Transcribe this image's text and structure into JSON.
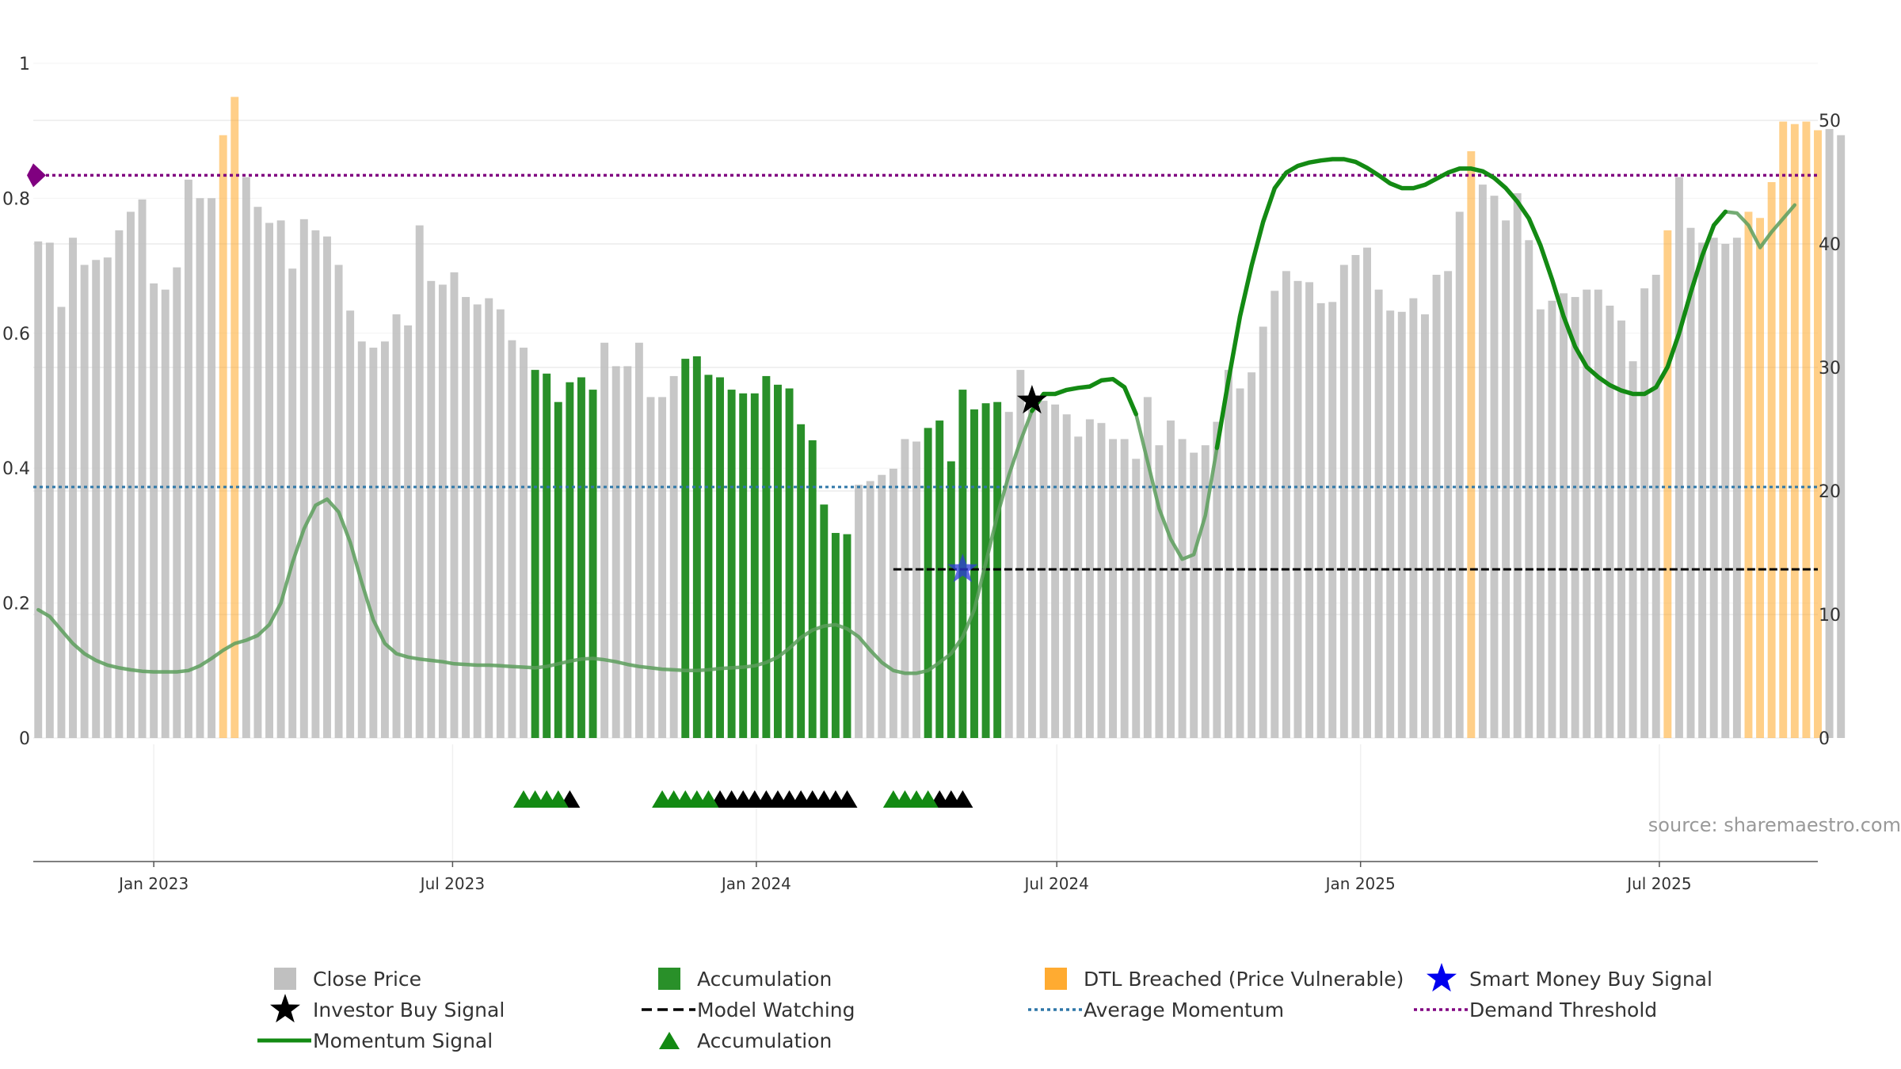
{
  "chart_data": {
    "type": "bar",
    "title": "",
    "source": "source: sharemaestro.com",
    "left_axis": {
      "ylim": [
        0,
        1
      ],
      "ticks": [
        "0",
        "0.2",
        "0.4",
        "0.6",
        "0.8",
        "1"
      ]
    },
    "right_axis": {
      "ylim": [
        0,
        50
      ],
      "ticks": [
        "0",
        "10",
        "20",
        "30",
        "40",
        "50"
      ]
    },
    "x_range": [
      "2022-10-20",
      "2025-10-05"
    ],
    "x_ticks": [
      {
        "date": "2023-01-01",
        "label": "Jan 2023"
      },
      {
        "date": "2023-07-01",
        "label": "Jul 2023"
      },
      {
        "date": "2024-01-01",
        "label": "Jan 2024"
      },
      {
        "date": "2024-07-01",
        "label": "Jul 2024"
      },
      {
        "date": "2025-01-01",
        "label": "Jan 2025"
      },
      {
        "date": "2025-07-01",
        "label": "Jul 2025"
      }
    ],
    "bar_start": "2022-10-23",
    "bar_interval_days": 7,
    "close_price": [
      40.2,
      40.1,
      34.9,
      40.5,
      38.3,
      38.7,
      38.9,
      41.1,
      42.6,
      43.6,
      36.8,
      36.3,
      38.1,
      45.2,
      43.7,
      43.7,
      48.8,
      51.9,
      45.4,
      43.0,
      41.7,
      41.9,
      38.0,
      42.0,
      41.1,
      40.6,
      38.3,
      34.6,
      32.1,
      31.6,
      32.1,
      34.3,
      33.4,
      41.5,
      37.0,
      36.7,
      37.7,
      35.7,
      35.1,
      35.6,
      34.7,
      32.2,
      31.6,
      29.8,
      29.5,
      27.2,
      28.8,
      29.2,
      28.2,
      32.0,
      30.1,
      30.1,
      32.0,
      27.6,
      27.6,
      29.3,
      30.7,
      30.9,
      29.4,
      29.2,
      28.2,
      27.9,
      27.9,
      29.3,
      28.6,
      28.3,
      25.4,
      24.1,
      18.9,
      16.6,
      16.5,
      20.5,
      20.8,
      21.3,
      21.8,
      24.2,
      24.0,
      25.1,
      25.7,
      22.4,
      28.2,
      26.6,
      27.1,
      27.2,
      26.4,
      29.8,
      26.6,
      27.3,
      27.0,
      26.2,
      24.4,
      25.8,
      25.5,
      24.2,
      24.2,
      22.6,
      27.6,
      23.7,
      25.7,
      24.2,
      23.1,
      23.7,
      25.6,
      29.8,
      28.3,
      29.6,
      33.3,
      36.2,
      37.8,
      37.0,
      36.9,
      35.2,
      35.3,
      38.3,
      39.1,
      39.7,
      36.3,
      34.6,
      34.5,
      35.6,
      34.3,
      37.5,
      37.8,
      42.6,
      47.5,
      44.8,
      43.9,
      41.9,
      44.1,
      40.3,
      34.7,
      35.4,
      36.0,
      35.7,
      36.3,
      36.3,
      35.0,
      33.8,
      30.5,
      36.4,
      37.5,
      41.1,
      45.4,
      41.3,
      40.1,
      40.5,
      40.0,
      40.5,
      42.6,
      42.1,
      45.0,
      49.9,
      49.7,
      49.9,
      49.2,
      49.3,
      48.8
    ],
    "accumulation_ranges": [
      [
        43,
        48
      ],
      [
        56,
        70
      ],
      [
        77,
        83
      ]
    ],
    "dtl_breached_ranges": [
      [
        16,
        17
      ],
      [
        124,
        124
      ],
      [
        141,
        141
      ],
      [
        148,
        154
      ]
    ],
    "momentum_signal": [
      [
        0,
        0.19
      ],
      [
        1,
        0.18
      ],
      [
        2,
        0.16
      ],
      [
        3,
        0.14
      ],
      [
        4,
        0.125
      ],
      [
        5,
        0.115
      ],
      [
        6,
        0.108
      ],
      [
        7,
        0.104
      ],
      [
        8,
        0.101
      ],
      [
        9,
        0.099
      ],
      [
        10,
        0.098
      ],
      [
        11,
        0.098
      ],
      [
        12,
        0.098
      ],
      [
        13,
        0.1
      ],
      [
        14,
        0.107
      ],
      [
        15,
        0.118
      ],
      [
        16,
        0.13
      ],
      [
        17,
        0.14
      ],
      [
        18,
        0.145
      ],
      [
        19,
        0.152
      ],
      [
        20,
        0.168
      ],
      [
        21,
        0.2
      ],
      [
        22,
        0.26
      ],
      [
        23,
        0.31
      ],
      [
        24,
        0.345
      ],
      [
        25,
        0.354
      ],
      [
        26,
        0.335
      ],
      [
        27,
        0.29
      ],
      [
        28,
        0.23
      ],
      [
        29,
        0.175
      ],
      [
        30,
        0.14
      ],
      [
        31,
        0.125
      ],
      [
        32,
        0.12
      ],
      [
        33,
        0.117
      ],
      [
        34,
        0.115
      ],
      [
        35,
        0.113
      ],
      [
        36,
        0.11
      ],
      [
        37,
        0.109
      ],
      [
        38,
        0.108
      ],
      [
        39,
        0.108
      ],
      [
        40,
        0.107
      ],
      [
        41,
        0.106
      ],
      [
        42,
        0.105
      ],
      [
        43,
        0.104
      ],
      [
        44,
        0.106
      ],
      [
        45,
        0.11
      ],
      [
        46,
        0.114
      ],
      [
        47,
        0.117
      ],
      [
        48,
        0.118
      ],
      [
        49,
        0.116
      ],
      [
        50,
        0.113
      ],
      [
        51,
        0.109
      ],
      [
        52,
        0.106
      ],
      [
        53,
        0.104
      ],
      [
        54,
        0.102
      ],
      [
        55,
        0.101
      ],
      [
        56,
        0.1
      ],
      [
        57,
        0.1
      ],
      [
        58,
        0.101
      ],
      [
        59,
        0.103
      ],
      [
        60,
        0.104
      ],
      [
        61,
        0.105
      ],
      [
        62,
        0.107
      ],
      [
        63,
        0.112
      ],
      [
        64,
        0.12
      ],
      [
        65,
        0.133
      ],
      [
        66,
        0.149
      ],
      [
        67,
        0.16
      ],
      [
        68,
        0.166
      ],
      [
        69,
        0.168
      ],
      [
        70,
        0.162
      ],
      [
        71,
        0.15
      ],
      [
        72,
        0.13
      ],
      [
        73,
        0.112
      ],
      [
        74,
        0.1
      ],
      [
        75,
        0.096
      ],
      [
        76,
        0.096
      ],
      [
        77,
        0.1
      ],
      [
        78,
        0.112
      ],
      [
        79,
        0.125
      ],
      [
        80,
        0.15
      ],
      [
        81,
        0.19
      ],
      [
        82,
        0.26
      ],
      [
        83,
        0.33
      ],
      [
        84,
        0.39
      ],
      [
        85,
        0.44
      ],
      [
        86,
        0.485
      ],
      [
        87,
        0.51
      ],
      [
        88,
        0.51
      ],
      [
        89,
        0.516
      ],
      [
        90,
        0.519
      ],
      [
        91,
        0.521
      ],
      [
        92,
        0.53
      ],
      [
        93,
        0.532
      ],
      [
        94,
        0.52
      ],
      [
        95,
        0.48
      ],
      [
        96,
        0.41
      ],
      [
        97,
        0.34
      ],
      [
        98,
        0.295
      ],
      [
        99,
        0.265
      ],
      [
        100,
        0.272
      ],
      [
        101,
        0.33
      ],
      [
        102,
        0.43
      ],
      [
        103,
        0.53
      ],
      [
        104,
        0.625
      ],
      [
        105,
        0.7
      ],
      [
        106,
        0.765
      ],
      [
        107,
        0.815
      ],
      [
        108,
        0.838
      ],
      [
        109,
        0.848
      ],
      [
        110,
        0.853
      ],
      [
        111,
        0.856
      ],
      [
        112,
        0.858
      ],
      [
        113,
        0.858
      ],
      [
        114,
        0.854
      ],
      [
        115,
        0.845
      ],
      [
        116,
        0.834
      ],
      [
        117,
        0.822
      ],
      [
        118,
        0.815
      ],
      [
        119,
        0.815
      ],
      [
        120,
        0.82
      ],
      [
        121,
        0.829
      ],
      [
        122,
        0.838
      ],
      [
        123,
        0.844
      ],
      [
        124,
        0.844
      ],
      [
        125,
        0.84
      ],
      [
        126,
        0.83
      ],
      [
        127,
        0.815
      ],
      [
        128,
        0.795
      ],
      [
        129,
        0.77
      ],
      [
        130,
        0.73
      ],
      [
        131,
        0.68
      ],
      [
        132,
        0.625
      ],
      [
        133,
        0.58
      ],
      [
        134,
        0.55
      ],
      [
        135,
        0.535
      ],
      [
        136,
        0.523
      ],
      [
        137,
        0.515
      ],
      [
        138,
        0.51
      ],
      [
        139,
        0.51
      ],
      [
        140,
        0.52
      ],
      [
        141,
        0.55
      ],
      [
        142,
        0.6
      ],
      [
        143,
        0.66
      ],
      [
        144,
        0.715
      ],
      [
        145,
        0.76
      ],
      [
        146,
        0.78
      ],
      [
        147,
        0.778
      ],
      [
        148,
        0.76
      ],
      [
        149,
        0.727
      ],
      [
        150,
        0.75
      ],
      [
        151,
        0.77
      ],
      [
        152,
        0.79
      ]
    ],
    "momentum_strong_ranges": [
      [
        86,
        95
      ],
      [
        102,
        146
      ]
    ],
    "average_momentum": 0.372,
    "demand_threshold": 0.834,
    "model_watching": {
      "start_index": 74,
      "end_index": 154,
      "level": 0.25
    },
    "investor_buy_signal": {
      "index": 86,
      "value": 0.5
    },
    "smart_money_buy_signal": {
      "index": 80,
      "value": 0.25
    },
    "accumulation_triangles": [
      42,
      43,
      44,
      45,
      54,
      55,
      56,
      57,
      58,
      74,
      75,
      76,
      77
    ],
    "watching_triangles": [
      46,
      59,
      60,
      61,
      62,
      63,
      64,
      65,
      66,
      67,
      68,
      69,
      70,
      78,
      79,
      80
    ],
    "demand_marker": "purple-diamond",
    "legend": [
      {
        "label": "Close Price",
        "symbol": "square",
        "color": "#BDBDBD"
      },
      {
        "label": "Accumulation",
        "symbol": "square",
        "color": "#1E8A1E"
      },
      {
        "label": "DTL Breached (Price Vulnerable)",
        "symbol": "square",
        "color": "#FFA726"
      },
      {
        "label": "Smart Money Buy Signal",
        "symbol": "star",
        "color": "#0000EE"
      },
      {
        "label": "Investor Buy Signal",
        "symbol": "star",
        "color": "#000000"
      },
      {
        "label": "Model Watching",
        "symbol": "dash",
        "color": "#000000"
      },
      {
        "label": "Average Momentum",
        "symbol": "dot",
        "color": "#2E77A8"
      },
      {
        "label": "Demand Threshold",
        "symbol": "dot",
        "color": "#800080"
      },
      {
        "label": "Momentum Signal",
        "symbol": "line",
        "color": "#138A13"
      },
      {
        "label": "Accumulation",
        "symbol": "triangle",
        "color": "#138A13"
      }
    ],
    "colors": {
      "close": "#BDBDBD",
      "accumulation": "#1E8A1E",
      "dtl": "#FFA726",
      "momentum": "#138A13",
      "momentum_faded": "#5C9E5C",
      "average_momentum": "#2E77A8",
      "demand": "#800080",
      "grid": "#EBEBEB"
    }
  }
}
